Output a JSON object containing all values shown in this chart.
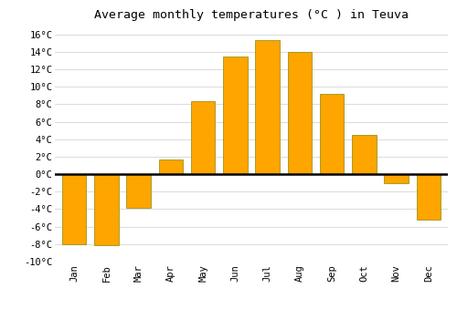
{
  "months": [
    "Jan",
    "Feb",
    "Mar",
    "Apr",
    "May",
    "Jun",
    "Jul",
    "Aug",
    "Sep",
    "Oct",
    "Nov",
    "Dec"
  ],
  "values": [
    -8.0,
    -8.1,
    -3.8,
    1.7,
    8.3,
    13.5,
    15.3,
    14.0,
    9.2,
    4.5,
    -1.0,
    -5.2
  ],
  "bar_color": "#FFA500",
  "bar_edge_color": "#888800",
  "title": "Average monthly temperatures (°C ) in Teuva",
  "ylim": [
    -10,
    17
  ],
  "yticks": [
    -10,
    -8,
    -6,
    -4,
    -2,
    0,
    2,
    4,
    6,
    8,
    10,
    12,
    14,
    16
  ],
  "background_color": "#ffffff",
  "grid_color": "#dddddd",
  "title_fontsize": 9.5,
  "tick_fontsize": 7.5,
  "bar_width": 0.75
}
